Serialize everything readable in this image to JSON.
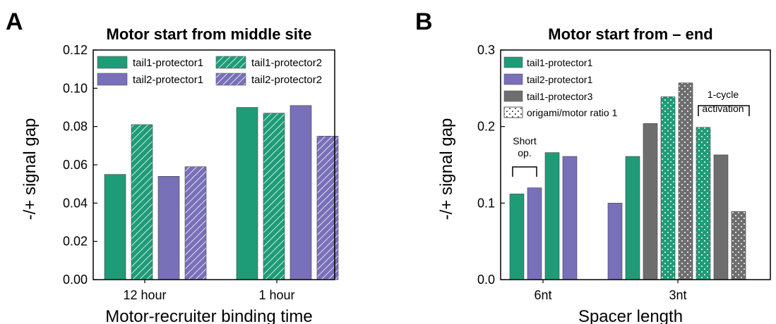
{
  "chart_data": [
    {
      "type": "bar",
      "panel_label": "A",
      "title": "Motor start from middle site",
      "xlabel": "Motor-recruiter binding time",
      "ylabel": "-/+ signal gap",
      "ylim": [
        0,
        0.12
      ],
      "yticks": [
        "0.00",
        "0.02",
        "0.04",
        "0.06",
        "0.08",
        "0.10",
        "0.12"
      ],
      "categories": [
        "12 hour",
        "1 hour"
      ],
      "legend_position": "top-left, two columns",
      "series": [
        {
          "name": "tail1-protector1",
          "color": "#1e9c78",
          "pattern": "solid",
          "values": [
            0.055,
            0.09
          ]
        },
        {
          "name": "tail1-protector2",
          "color": "#1e9c78",
          "pattern": "hatched",
          "values": [
            0.081,
            0.087
          ]
        },
        {
          "name": "tail2-protector1",
          "color": "#7870b8",
          "pattern": "solid",
          "values": [
            0.054,
            0.091
          ]
        },
        {
          "name": "tail2-protector2",
          "color": "#7870b8",
          "pattern": "hatched",
          "values": [
            0.059,
            0.075
          ]
        }
      ]
    },
    {
      "type": "bar",
      "panel_label": "B",
      "title": "Motor start from – end",
      "xlabel": "Spacer length",
      "ylabel": "-/+ signal gap",
      "ylim": [
        0,
        0.3
      ],
      "yticks": [
        "0.0",
        "0.1",
        "0.2",
        "0.3"
      ],
      "categories": [
        "6nt",
        "3nt"
      ],
      "legend_position": "top-left",
      "legend": [
        {
          "name": "tail1-protector1",
          "color": "#1e9c78",
          "pattern": "solid"
        },
        {
          "name": "tail2-protector1",
          "color": "#7870b8",
          "pattern": "solid"
        },
        {
          "name": "tail1-protector3",
          "color": "#6e6e6e",
          "pattern": "solid"
        },
        {
          "name": "origami/motor ratio 1",
          "color": "#ffffff",
          "pattern": "dotted"
        }
      ],
      "bars": [
        {
          "category": "6nt",
          "color": "#1e9c78",
          "dotted": false,
          "value": 0.112
        },
        {
          "category": "6nt",
          "color": "#7870b8",
          "dotted": false,
          "value": 0.12
        },
        {
          "category": "6nt",
          "color": "#1e9c78",
          "dotted": false,
          "value": 0.166
        },
        {
          "category": "6nt",
          "color": "#7870b8",
          "dotted": false,
          "value": 0.161
        },
        {
          "category": "3nt",
          "color": "#7870b8",
          "dotted": false,
          "value": 0.1
        },
        {
          "category": "3nt",
          "color": "#1e9c78",
          "dotted": false,
          "value": 0.161
        },
        {
          "category": "3nt",
          "color": "#6e6e6e",
          "dotted": false,
          "value": 0.204
        },
        {
          "category": "3nt",
          "color": "#1e9c78",
          "dotted": true,
          "value": 0.239
        },
        {
          "category": "3nt",
          "color": "#6e6e6e",
          "dotted": true,
          "value": 0.257
        },
        {
          "category": "3nt",
          "color": "#1e9c78",
          "dotted": true,
          "value": 0.199
        },
        {
          "category": "3nt",
          "color": "#6e6e6e",
          "dotted": false,
          "value": 0.163
        },
        {
          "category": "3nt",
          "color": "#6e6e6e",
          "dotted": true,
          "value": 0.089
        }
      ],
      "annotations": [
        {
          "text_lines": [
            "Short",
            "op."
          ],
          "bracket_over_bars": [
            0,
            1
          ]
        },
        {
          "text_lines": [
            "1-cycle",
            "activation"
          ],
          "bracket_over_bars": [
            9,
            11
          ]
        }
      ]
    }
  ]
}
